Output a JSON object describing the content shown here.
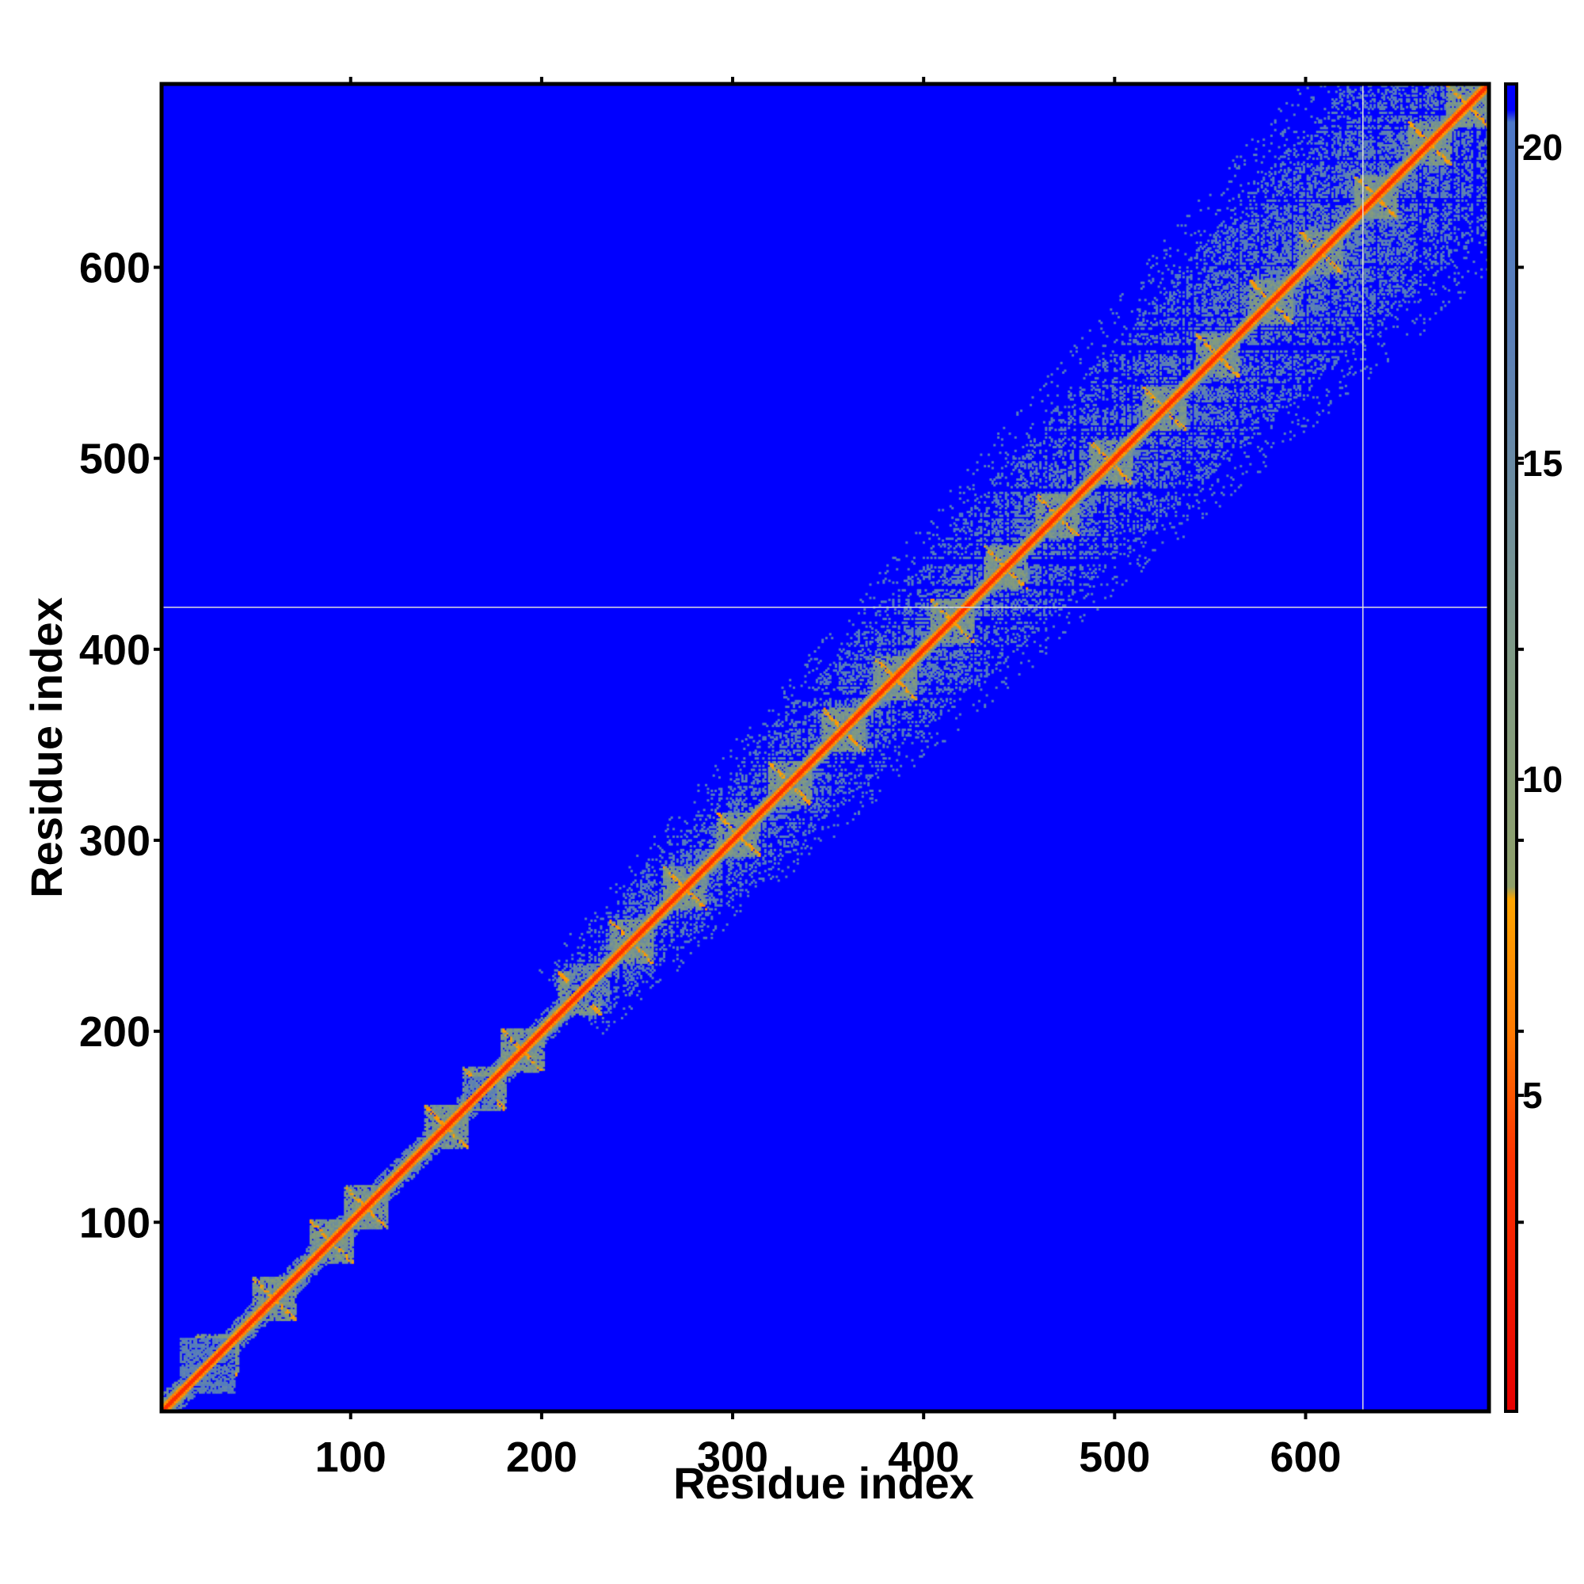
{
  "chart_data": {
    "type": "heatmap",
    "title": "",
    "xlabel": "Residue index",
    "ylabel": "Residue index",
    "xlim": [
      1,
      696
    ],
    "ylim": [
      1,
      696
    ],
    "x_ticks": [
      100,
      200,
      300,
      400,
      500,
      600
    ],
    "y_ticks": [
      100,
      200,
      300,
      400,
      500,
      600
    ],
    "colorbar": {
      "ticks": [
        5,
        10,
        15,
        20
      ],
      "range": [
        0,
        21
      ],
      "stops": [
        {
          "value": 0,
          "color": "#e60000"
        },
        {
          "value": 4,
          "color": "#ff3300"
        },
        {
          "value": 6,
          "color": "#ff7a00"
        },
        {
          "value": 8.1,
          "color": "#ffa500"
        },
        {
          "value": 8.3,
          "color": "#8fa06a"
        },
        {
          "value": 12,
          "color": "#7f9a86"
        },
        {
          "value": 17,
          "color": "#5a7fb8"
        },
        {
          "value": 20.4,
          "color": "#4d78c8"
        },
        {
          "value": 20.6,
          "color": "#0000ff"
        },
        {
          "value": 21,
          "color": "#0000ff"
        }
      ]
    },
    "background_value": 21,
    "diagonal_value": 3.8,
    "contact_band": {
      "start_residue": 215,
      "end_residue": 696,
      "half_width_start": 25,
      "half_width_end": 80,
      "density": 0.55,
      "typical_value": 17
    },
    "small_domains": [
      {
        "center": 25,
        "half_width": 14,
        "value": 15
      },
      {
        "center": 168,
        "half_width": 8,
        "value": 14
      },
      {
        "center": 225,
        "half_width": 10,
        "value": 13
      }
    ],
    "repeat_units": [
      30,
      60,
      90,
      108,
      150,
      170,
      190,
      220,
      247,
      275,
      303,
      330,
      358,
      385,
      415,
      443,
      470,
      498,
      526,
      554,
      582,
      608,
      637,
      665,
      685
    ],
    "grid_lines": {
      "x": 630,
      "y": 422,
      "color": "#dddddd"
    }
  }
}
